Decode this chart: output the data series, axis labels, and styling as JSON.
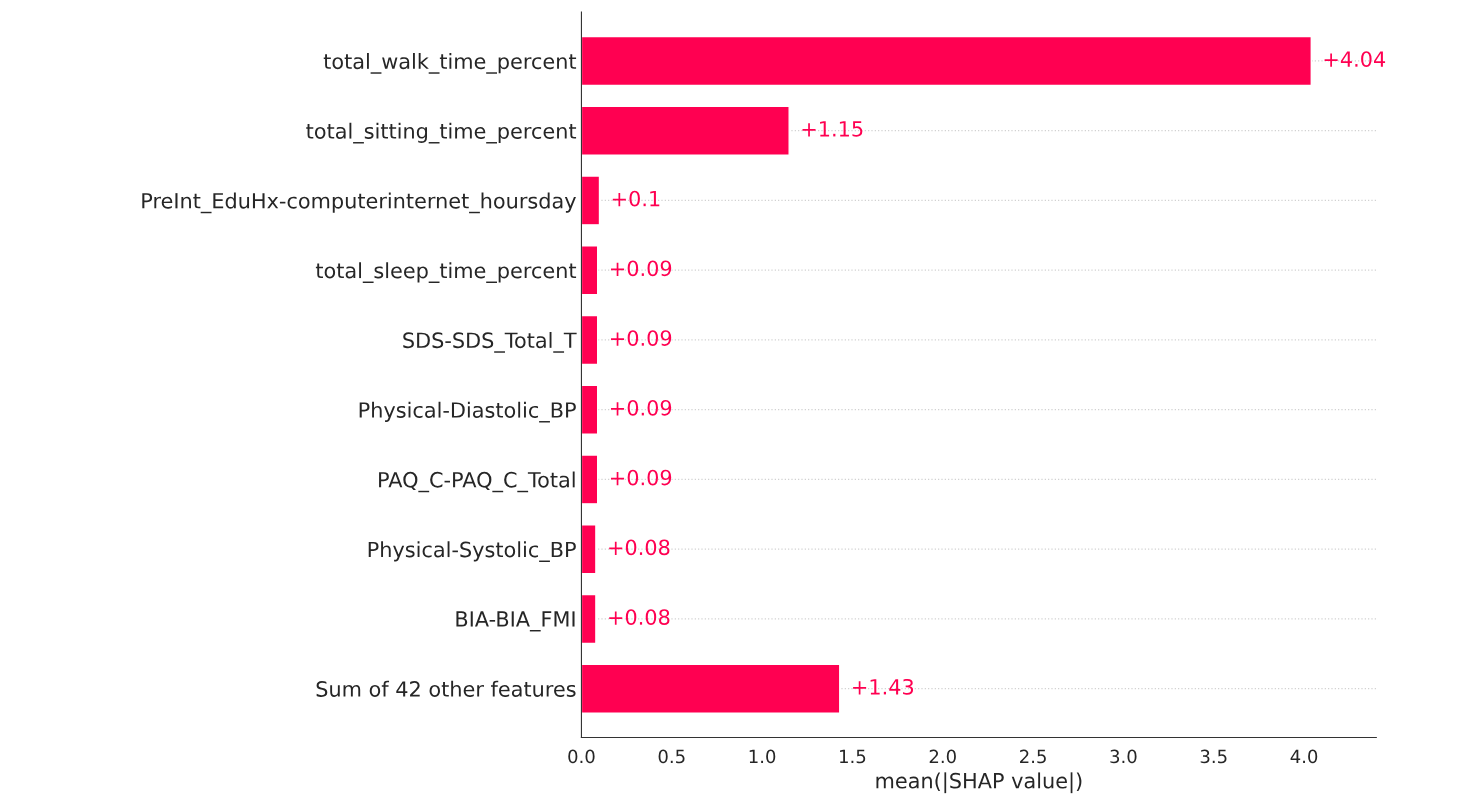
{
  "chart_data": {
    "type": "bar",
    "orientation": "horizontal",
    "xlabel": "mean(|SHAP value|)",
    "categories": [
      "total_walk_time_percent",
      "total_sitting_time_percent",
      "PreInt_EduHx-computerinternet_hoursday",
      "total_sleep_time_percent",
      "SDS-SDS_Total_T",
      "Physical-Diastolic_BP",
      "PAQ_C-PAQ_C_Total",
      "Physical-Systolic_BP",
      "BIA-BIA_FMI",
      "Sum of 42 other features"
    ],
    "values": [
      4.04,
      1.15,
      0.1,
      0.09,
      0.09,
      0.09,
      0.09,
      0.08,
      0.08,
      1.43
    ],
    "value_labels": [
      "+4.04",
      "+1.15",
      "+0.1",
      "+0.09",
      "+0.09",
      "+0.09",
      "+0.09",
      "+0.08",
      "+0.08",
      "+1.43"
    ],
    "color": "#ff0051",
    "xlim": [
      0,
      4.4
    ],
    "xticks": [
      {
        "value": 0,
        "label": "0.0"
      },
      {
        "value": 0.5,
        "label": "0.5"
      },
      {
        "value": 1,
        "label": "1.0"
      },
      {
        "value": 1.5,
        "label": "1.5"
      },
      {
        "value": 2,
        "label": "2.0"
      },
      {
        "value": 2.5,
        "label": "2.5"
      },
      {
        "value": 3,
        "label": "3.0"
      },
      {
        "value": 3.5,
        "label": "3.5"
      },
      {
        "value": 4,
        "label": "4.0"
      }
    ],
    "grid": "y"
  }
}
